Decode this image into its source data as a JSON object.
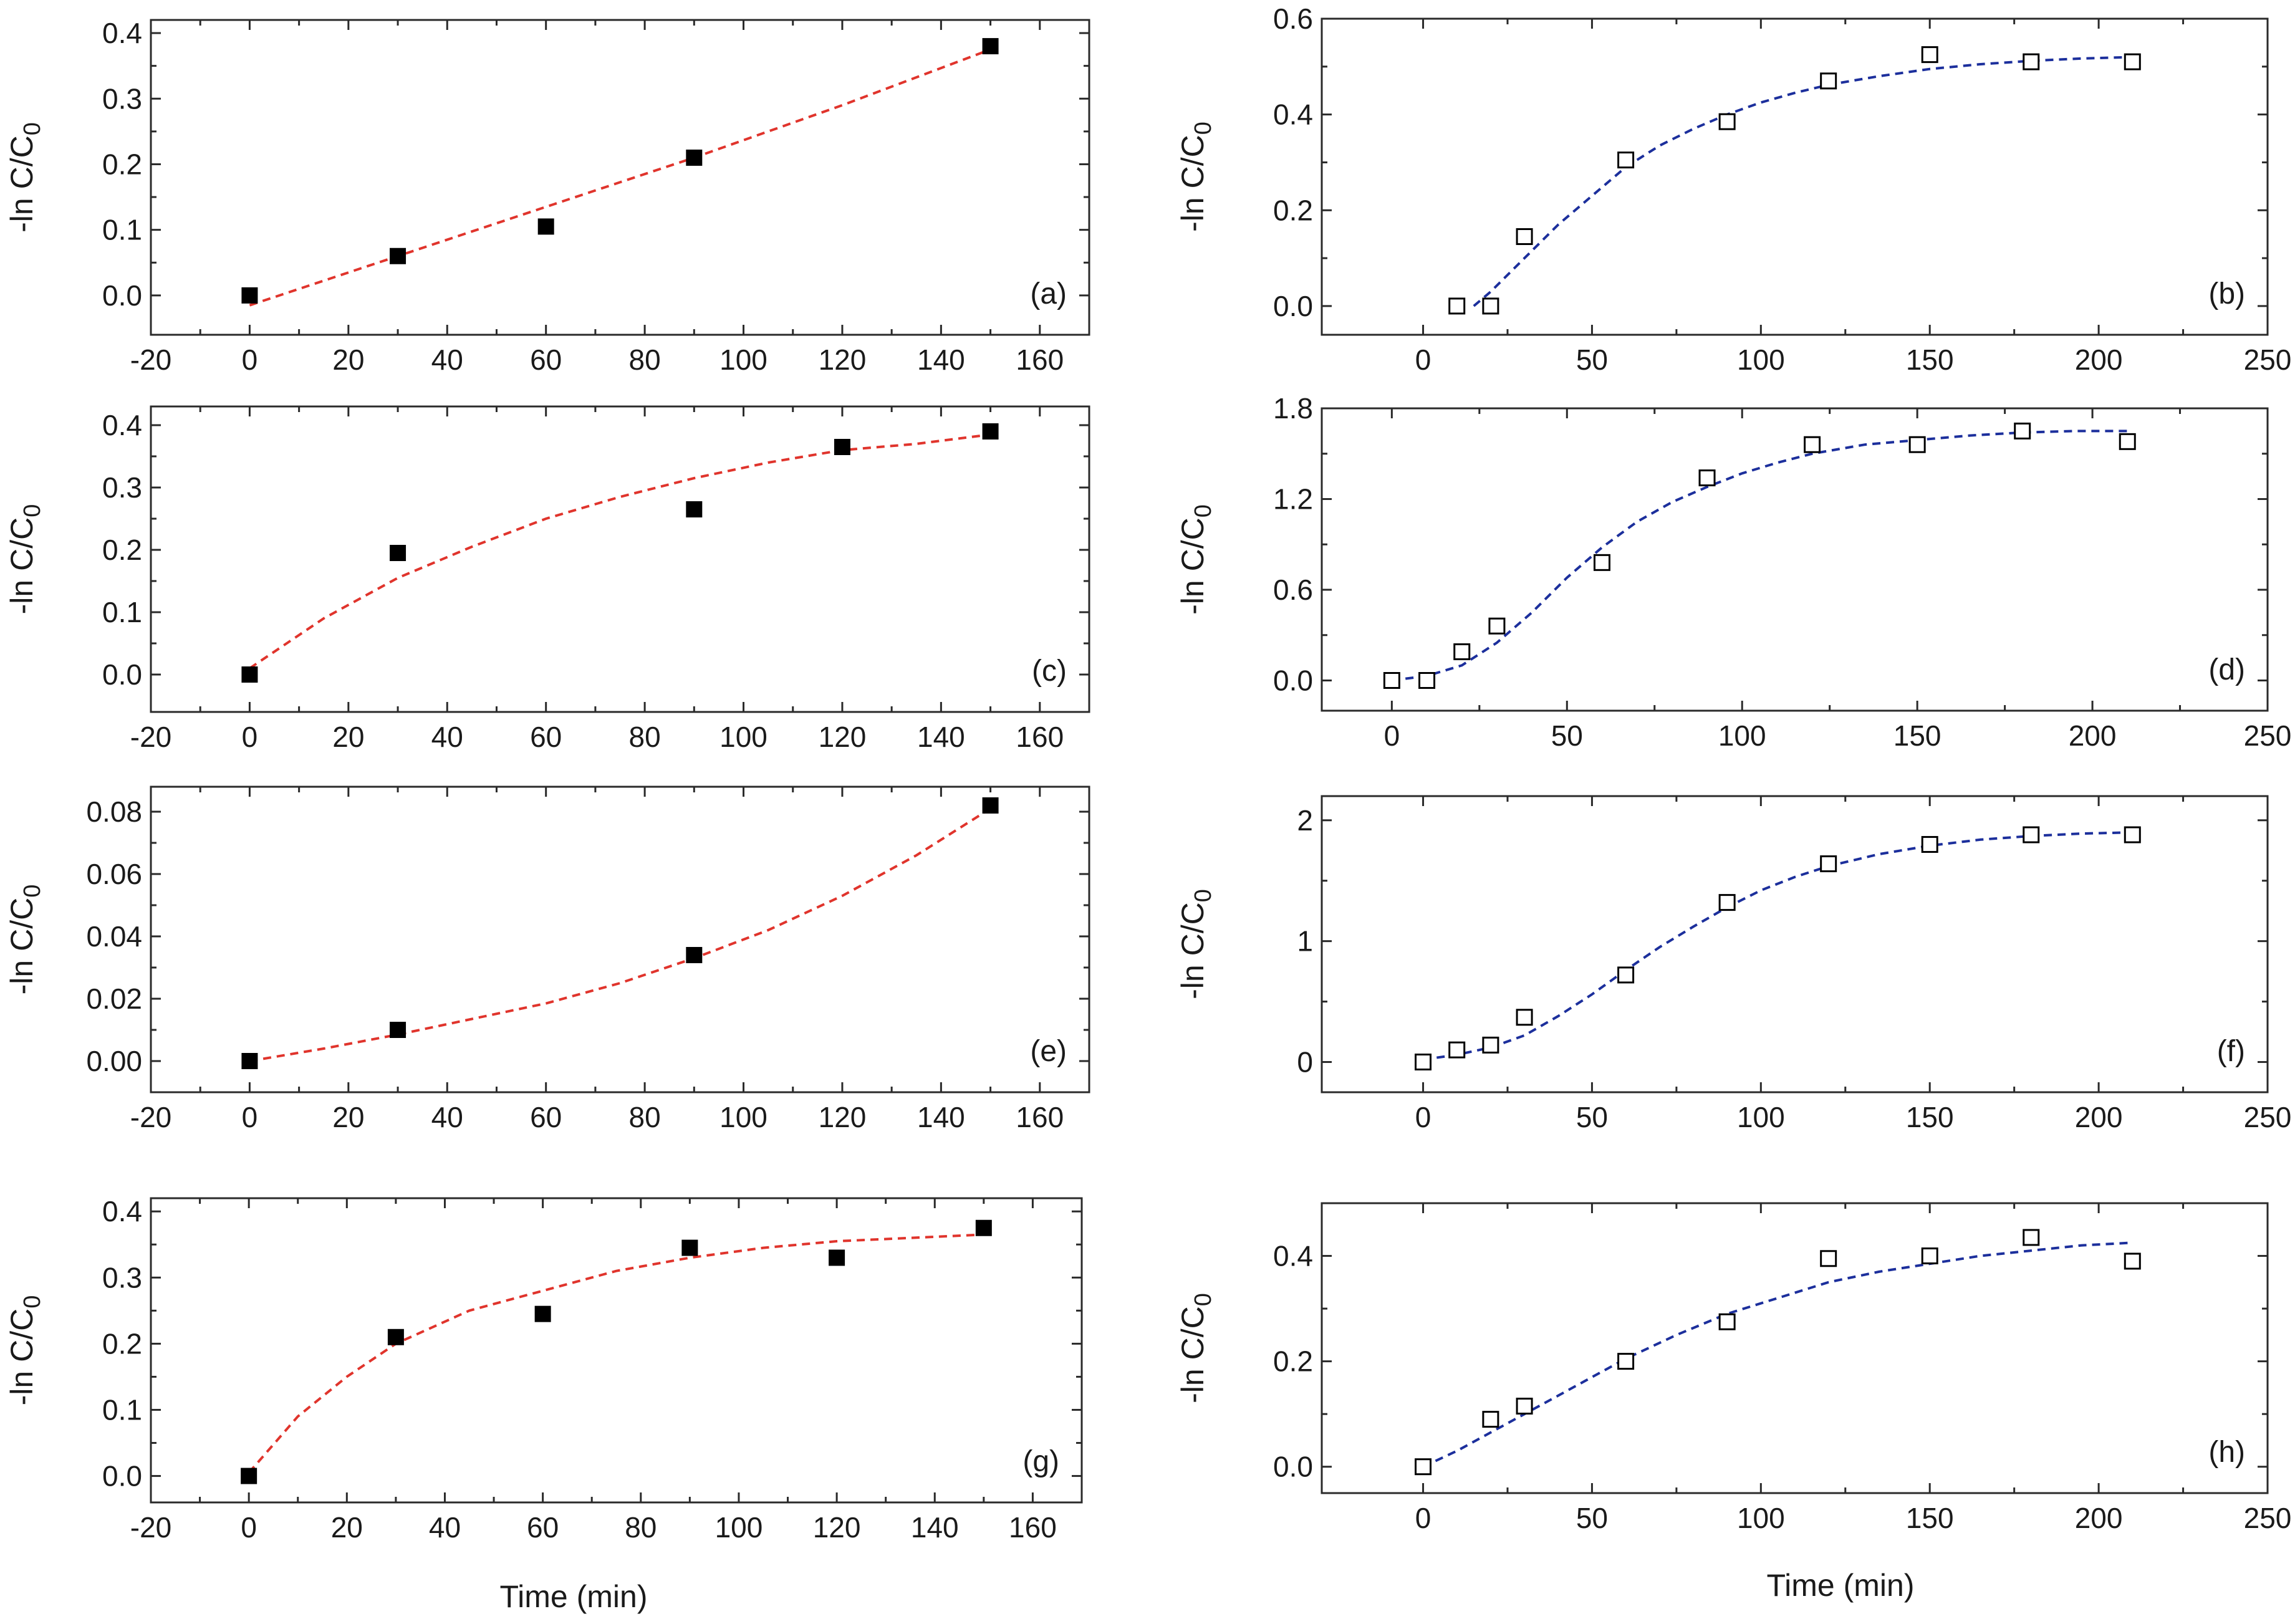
{
  "colors": {
    "fit_red": "#e0342c",
    "fit_blue": "#1c2f9c",
    "axis": "#2a2a2a",
    "marker": "#000000"
  },
  "x_axis_title": "Time (min)",
  "y_axis_title_prefix": "-ln C/C",
  "y_axis_title_sub": "0",
  "chart_data": [
    {
      "id": "a",
      "letter": "(a)",
      "type": "scatter",
      "marker": "filled-square",
      "fit_color": "fit_red",
      "xlim": [
        -20,
        170
      ],
      "xticks": [
        -20,
        0,
        20,
        40,
        60,
        80,
        100,
        120,
        140,
        160
      ],
      "show_xticklabels": true,
      "ylim": [
        -0.06,
        0.42
      ],
      "yticks": [
        0.0,
        0.1,
        0.2,
        0.3,
        0.4
      ],
      "ytick_labels": [
        "0.0",
        "0.1",
        "0.2",
        "0.3",
        "0.4"
      ],
      "x": [
        0,
        30,
        60,
        90,
        150
      ],
      "y": [
        0.0,
        0.06,
        0.105,
        0.21,
        0.38
      ],
      "fit_x": [
        0,
        30,
        60,
        90,
        120,
        150
      ],
      "fit_y": [
        -0.015,
        0.06,
        0.135,
        0.21,
        0.29,
        0.375
      ]
    },
    {
      "id": "b",
      "letter": "(b)",
      "type": "scatter",
      "marker": "open-square",
      "fit_color": "fit_blue",
      "xlim": [
        -30,
        250
      ],
      "xticks": [
        0,
        50,
        100,
        150,
        200,
        250
      ],
      "show_xticklabels": true,
      "ylim": [
        -0.06,
        0.6
      ],
      "yticks": [
        0.0,
        0.2,
        0.4,
        0.6
      ],
      "ytick_labels": [
        "0.0",
        "0.2",
        "0.4",
        "0.6"
      ],
      "x": [
        10,
        20,
        30,
        60,
        90,
        120,
        150,
        180,
        210
      ],
      "y": [
        0.0,
        0.0,
        0.145,
        0.305,
        0.385,
        0.47,
        0.525,
        0.51,
        0.51
      ],
      "fit_x": [
        15,
        20,
        30,
        40,
        50,
        60,
        70,
        80,
        90,
        100,
        110,
        120,
        135,
        150,
        165,
        180,
        195,
        210
      ],
      "fit_y": [
        0.0,
        0.03,
        0.1,
        0.17,
        0.23,
        0.29,
        0.335,
        0.37,
        0.4,
        0.425,
        0.445,
        0.462,
        0.48,
        0.495,
        0.505,
        0.512,
        0.517,
        0.52
      ]
    },
    {
      "id": "c",
      "letter": "(c)",
      "type": "scatter",
      "marker": "filled-square",
      "fit_color": "fit_red",
      "xlim": [
        -20,
        170
      ],
      "xticks": [
        -20,
        0,
        20,
        40,
        60,
        80,
        100,
        120,
        140,
        160
      ],
      "show_xticklabels": true,
      "ylim": [
        -0.06,
        0.43
      ],
      "yticks": [
        0.0,
        0.1,
        0.2,
        0.3,
        0.4
      ],
      "ytick_labels": [
        "0.0",
        "0.1",
        "0.2",
        "0.3",
        "0.4"
      ],
      "x": [
        0,
        30,
        90,
        120,
        150
      ],
      "y": [
        0.0,
        0.195,
        0.265,
        0.365,
        0.39
      ],
      "fit_x": [
        0,
        15,
        30,
        45,
        60,
        75,
        90,
        105,
        120,
        135,
        150
      ],
      "fit_y": [
        0.01,
        0.09,
        0.155,
        0.205,
        0.25,
        0.285,
        0.315,
        0.34,
        0.36,
        0.37,
        0.385
      ]
    },
    {
      "id": "d",
      "letter": "(d)",
      "type": "scatter",
      "marker": "open-square",
      "fit_color": "fit_blue",
      "xlim": [
        -20,
        250
      ],
      "xticks": [
        0,
        50,
        100,
        150,
        200,
        250
      ],
      "show_xticklabels": true,
      "ylim": [
        -0.2,
        1.8
      ],
      "yticks": [
        0.0,
        0.6,
        1.2,
        1.8
      ],
      "ytick_labels": [
        "0.0",
        "0.6",
        "1.2",
        "1.8"
      ],
      "x": [
        0,
        10,
        20,
        30,
        60,
        90,
        120,
        150,
        180,
        210
      ],
      "y": [
        0.0,
        0.0,
        0.19,
        0.36,
        0.78,
        1.34,
        1.56,
        1.56,
        1.65,
        1.58
      ],
      "fit_x": [
        0,
        10,
        20,
        30,
        40,
        50,
        60,
        70,
        80,
        90,
        100,
        110,
        120,
        135,
        150,
        165,
        180,
        195,
        210
      ],
      "fit_y": [
        0.0,
        0.03,
        0.1,
        0.25,
        0.45,
        0.68,
        0.88,
        1.05,
        1.18,
        1.28,
        1.37,
        1.44,
        1.5,
        1.56,
        1.59,
        1.62,
        1.64,
        1.65,
        1.65
      ]
    },
    {
      "id": "e",
      "letter": "(e)",
      "type": "scatter",
      "marker": "filled-square",
      "fit_color": "fit_red",
      "xlim": [
        -20,
        170
      ],
      "xticks": [
        -20,
        0,
        20,
        40,
        60,
        80,
        100,
        120,
        140,
        160
      ],
      "show_xticklabels": true,
      "ylim": [
        -0.01,
        0.088
      ],
      "yticks": [
        0.0,
        0.02,
        0.04,
        0.06,
        0.08
      ],
      "ytick_labels": [
        "0.00",
        "0.02",
        "0.04",
        "0.06",
        "0.08"
      ],
      "x": [
        0,
        30,
        90,
        150
      ],
      "y": [
        0.0,
        0.01,
        0.034,
        0.082
      ],
      "fit_x": [
        0,
        15,
        30,
        45,
        60,
        75,
        90,
        105,
        120,
        135,
        150
      ],
      "fit_y": [
        0.0,
        0.004,
        0.0085,
        0.0135,
        0.0185,
        0.025,
        0.033,
        0.042,
        0.053,
        0.066,
        0.081
      ]
    },
    {
      "id": "f",
      "letter": "(f)",
      "type": "scatter",
      "marker": "open-square",
      "fit_color": "fit_blue",
      "xlim": [
        -30,
        250
      ],
      "xticks": [
        0,
        50,
        100,
        150,
        200,
        250
      ],
      "show_xticklabels": true,
      "ylim": [
        -0.25,
        2.2
      ],
      "yticks": [
        0,
        1,
        2
      ],
      "ytick_labels": [
        "0",
        "1",
        "2"
      ],
      "x": [
        0,
        10,
        20,
        30,
        60,
        90,
        120,
        150,
        180,
        210
      ],
      "y": [
        0.0,
        0.1,
        0.14,
        0.37,
        0.72,
        1.32,
        1.64,
        1.8,
        1.88,
        1.88
      ],
      "fit_x": [
        0,
        10,
        20,
        30,
        40,
        50,
        60,
        70,
        80,
        90,
        100,
        110,
        120,
        135,
        150,
        165,
        180,
        195,
        210
      ],
      "fit_y": [
        0.02,
        0.06,
        0.12,
        0.22,
        0.38,
        0.56,
        0.76,
        0.95,
        1.12,
        1.28,
        1.42,
        1.53,
        1.62,
        1.72,
        1.79,
        1.84,
        1.87,
        1.89,
        1.9
      ]
    },
    {
      "id": "g",
      "letter": "(g)",
      "type": "scatter",
      "marker": "filled-square",
      "fit_color": "fit_red",
      "xlim": [
        -20,
        170
      ],
      "xticks": [
        -20,
        0,
        20,
        40,
        60,
        80,
        100,
        120,
        140,
        160
      ],
      "show_xticklabels": true,
      "ylim": [
        -0.04,
        0.42
      ],
      "yticks": [
        0.0,
        0.1,
        0.2,
        0.3,
        0.4
      ],
      "ytick_labels": [
        "0.0",
        "0.1",
        "0.2",
        "0.3",
        "0.4"
      ],
      "x": [
        0,
        30,
        60,
        90,
        120,
        150
      ],
      "y": [
        0.0,
        0.21,
        0.245,
        0.345,
        0.33,
        0.375
      ],
      "fit_x": [
        0,
        10,
        20,
        30,
        45,
        60,
        75,
        90,
        105,
        120,
        135,
        150
      ],
      "fit_y": [
        0.005,
        0.09,
        0.15,
        0.2,
        0.25,
        0.28,
        0.31,
        0.33,
        0.345,
        0.355,
        0.36,
        0.365
      ]
    },
    {
      "id": "h",
      "letter": "(h)",
      "type": "scatter",
      "marker": "open-square",
      "fit_color": "fit_blue",
      "xlim": [
        -30,
        250
      ],
      "xticks": [
        0,
        50,
        100,
        150,
        200,
        250
      ],
      "show_xticklabels": true,
      "ylim": [
        -0.05,
        0.5
      ],
      "yticks": [
        0.0,
        0.2,
        0.4
      ],
      "ytick_labels": [
        "0.0",
        "0.2",
        "0.4"
      ],
      "x": [
        0,
        20,
        30,
        60,
        90,
        120,
        150,
        180,
        210
      ],
      "y": [
        0.0,
        0.09,
        0.115,
        0.2,
        0.275,
        0.395,
        0.4,
        0.435,
        0.39
      ],
      "fit_x": [
        0,
        10,
        20,
        30,
        40,
        50,
        60,
        75,
        90,
        105,
        120,
        135,
        150,
        165,
        180,
        195,
        210
      ],
      "fit_y": [
        0.0,
        0.03,
        0.065,
        0.1,
        0.135,
        0.17,
        0.205,
        0.25,
        0.29,
        0.32,
        0.35,
        0.37,
        0.385,
        0.4,
        0.41,
        0.42,
        0.425
      ]
    }
  ]
}
